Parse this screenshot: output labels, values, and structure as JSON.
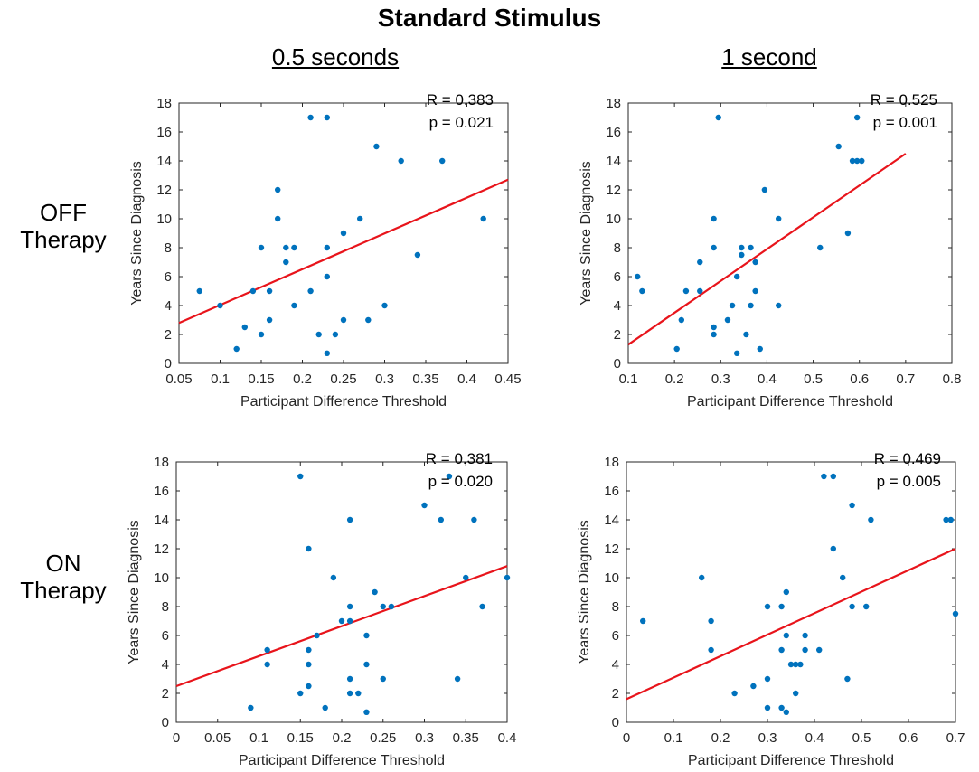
{
  "figure": {
    "title": "Standard Stimulus",
    "columns": [
      "0.5 seconds",
      "1 second"
    ],
    "rows": [
      {
        "line1": "OFF",
        "line2": "Therapy"
      },
      {
        "line1": "ON",
        "line2": "Therapy"
      }
    ],
    "point_color": "#0072BD",
    "line_color": "#E8141B"
  },
  "chart_data": [
    {
      "type": "scatter",
      "panel": "OFF Therapy, 0.5 seconds",
      "xlabel": "Participant Difference Threshold",
      "ylabel": "Years Since Diagnosis",
      "xlim": [
        0.05,
        0.45
      ],
      "ylim": [
        0,
        18
      ],
      "xticks": [
        0.05,
        0.1,
        0.15,
        0.2,
        0.25,
        0.3,
        0.35,
        0.4,
        0.45
      ],
      "xtick_labels": [
        "0.05",
        "0.1",
        "0.15",
        "0.2",
        "0.25",
        "0.3",
        "0.35",
        "0.4",
        "0.45"
      ],
      "yticks": [
        0,
        2,
        4,
        6,
        8,
        10,
        12,
        14,
        16,
        18
      ],
      "annotation": {
        "r": "R = 0.383",
        "p": "p = 0.021"
      },
      "fit_line": {
        "x": [
          0.05,
          0.45
        ],
        "y": [
          2.8,
          12.7
        ]
      },
      "points": [
        [
          0.075,
          5
        ],
        [
          0.1,
          4
        ],
        [
          0.12,
          1
        ],
        [
          0.13,
          2.5
        ],
        [
          0.14,
          5
        ],
        [
          0.15,
          2
        ],
        [
          0.15,
          8
        ],
        [
          0.16,
          5
        ],
        [
          0.16,
          3
        ],
        [
          0.17,
          12
        ],
        [
          0.17,
          10
        ],
        [
          0.18,
          8
        ],
        [
          0.18,
          7
        ],
        [
          0.19,
          8
        ],
        [
          0.19,
          4
        ],
        [
          0.21,
          17
        ],
        [
          0.21,
          5
        ],
        [
          0.22,
          2
        ],
        [
          0.23,
          17
        ],
        [
          0.23,
          8
        ],
        [
          0.23,
          6
        ],
        [
          0.23,
          0.7
        ],
        [
          0.24,
          2
        ],
        [
          0.25,
          9
        ],
        [
          0.25,
          3
        ],
        [
          0.27,
          10
        ],
        [
          0.28,
          3
        ],
        [
          0.29,
          15
        ],
        [
          0.3,
          4
        ],
        [
          0.32,
          14
        ],
        [
          0.34,
          7.5
        ],
        [
          0.37,
          14
        ],
        [
          0.42,
          10
        ]
      ]
    },
    {
      "type": "scatter",
      "panel": "OFF Therapy, 1 second",
      "xlabel": "Participant Difference Threshold",
      "ylabel": "Years Since Diagnosis",
      "xlim": [
        0.1,
        0.8
      ],
      "ylim": [
        0,
        18
      ],
      "xticks": [
        0.1,
        0.2,
        0.3,
        0.4,
        0.5,
        0.6,
        0.7,
        0.8
      ],
      "xtick_labels": [
        "0.1",
        "0.2",
        "0.3",
        "0.4",
        "0.5",
        "0.6",
        "0.7",
        "0.8"
      ],
      "yticks": [
        0,
        2,
        4,
        6,
        8,
        10,
        12,
        14,
        16,
        18
      ],
      "annotation": {
        "r": "R = 0.525",
        "p": "p = 0.001"
      },
      "fit_line": {
        "x": [
          0.1,
          0.7
        ],
        "y": [
          1.3,
          14.5
        ]
      },
      "points": [
        [
          0.12,
          6
        ],
        [
          0.13,
          5
        ],
        [
          0.205,
          1
        ],
        [
          0.215,
          3
        ],
        [
          0.225,
          5
        ],
        [
          0.255,
          7
        ],
        [
          0.255,
          5
        ],
        [
          0.285,
          10
        ],
        [
          0.285,
          8
        ],
        [
          0.285,
          2.5
        ],
        [
          0.285,
          2
        ],
        [
          0.295,
          17
        ],
        [
          0.315,
          3
        ],
        [
          0.325,
          4
        ],
        [
          0.335,
          6
        ],
        [
          0.335,
          0.7
        ],
        [
          0.345,
          8
        ],
        [
          0.345,
          7.5
        ],
        [
          0.355,
          2
        ],
        [
          0.365,
          8
        ],
        [
          0.365,
          4
        ],
        [
          0.375,
          7
        ],
        [
          0.375,
          5
        ],
        [
          0.385,
          1
        ],
        [
          0.395,
          12
        ],
        [
          0.425,
          10
        ],
        [
          0.425,
          4
        ],
        [
          0.515,
          8
        ],
        [
          0.555,
          15
        ],
        [
          0.575,
          9
        ],
        [
          0.585,
          14
        ],
        [
          0.595,
          17
        ],
        [
          0.595,
          14
        ],
        [
          0.605,
          14
        ]
      ]
    },
    {
      "type": "scatter",
      "panel": "ON Therapy, 0.5 seconds",
      "xlabel": "Participant Difference Threshold",
      "ylabel": "Years Since Diagnosis",
      "xlim": [
        0,
        0.4
      ],
      "ylim": [
        0,
        18
      ],
      "xticks": [
        0,
        0.05,
        0.1,
        0.15,
        0.2,
        0.25,
        0.3,
        0.35,
        0.4
      ],
      "xtick_labels": [
        "0",
        "0.05",
        "0.1",
        "0.15",
        "0.2",
        "0.25",
        "0.3",
        "0.35",
        "0.4"
      ],
      "yticks": [
        0,
        2,
        4,
        6,
        8,
        10,
        12,
        14,
        16,
        18
      ],
      "annotation": {
        "r": "R = 0.381",
        "p": "p = 0.020"
      },
      "fit_line": {
        "x": [
          0,
          0.4
        ],
        "y": [
          2.5,
          10.8
        ]
      },
      "points": [
        [
          0.09,
          1
        ],
        [
          0.11,
          5
        ],
        [
          0.11,
          4
        ],
        [
          0.15,
          17
        ],
        [
          0.15,
          2
        ],
        [
          0.16,
          12
        ],
        [
          0.16,
          5
        ],
        [
          0.16,
          4
        ],
        [
          0.16,
          2.5
        ],
        [
          0.17,
          6
        ],
        [
          0.18,
          1
        ],
        [
          0.19,
          10
        ],
        [
          0.2,
          7
        ],
        [
          0.21,
          14
        ],
        [
          0.21,
          8
        ],
        [
          0.21,
          7
        ],
        [
          0.21,
          3
        ],
        [
          0.21,
          2
        ],
        [
          0.22,
          2
        ],
        [
          0.23,
          6
        ],
        [
          0.23,
          4
        ],
        [
          0.23,
          0.7
        ],
        [
          0.24,
          9
        ],
        [
          0.25,
          8
        ],
        [
          0.25,
          3
        ],
        [
          0.26,
          8
        ],
        [
          0.3,
          15
        ],
        [
          0.32,
          14
        ],
        [
          0.33,
          17
        ],
        [
          0.34,
          3
        ],
        [
          0.35,
          10
        ],
        [
          0.36,
          14
        ],
        [
          0.37,
          8
        ],
        [
          0.4,
          10
        ]
      ]
    },
    {
      "type": "scatter",
      "panel": "ON Therapy, 1 second",
      "xlabel": "Participant Difference Threshold",
      "ylabel": "Years Since Diagnosis",
      "xlim": [
        0,
        0.7
      ],
      "ylim": [
        0,
        18
      ],
      "xticks": [
        0,
        0.1,
        0.2,
        0.3,
        0.4,
        0.5,
        0.6,
        0.7
      ],
      "xtick_labels": [
        "0",
        "0.1",
        "0.2",
        "0.3",
        "0.4",
        "0.5",
        "0.6",
        "0.7"
      ],
      "yticks": [
        0,
        2,
        4,
        6,
        8,
        10,
        12,
        14,
        16,
        18
      ],
      "annotation": {
        "r": "R = 0.469",
        "p": "p = 0.005"
      },
      "fit_line": {
        "x": [
          0,
          0.7
        ],
        "y": [
          1.6,
          12
        ]
      },
      "points": [
        [
          0.035,
          7
        ],
        [
          0.16,
          10
        ],
        [
          0.18,
          7
        ],
        [
          0.18,
          5
        ],
        [
          0.23,
          2
        ],
        [
          0.27,
          2.5
        ],
        [
          0.3,
          8
        ],
        [
          0.3,
          3
        ],
        [
          0.3,
          1
        ],
        [
          0.33,
          8
        ],
        [
          0.33,
          5
        ],
        [
          0.33,
          1
        ],
        [
          0.34,
          9
        ],
        [
          0.34,
          6
        ],
        [
          0.34,
          0.7
        ],
        [
          0.35,
          4
        ],
        [
          0.36,
          4
        ],
        [
          0.36,
          2
        ],
        [
          0.37,
          4
        ],
        [
          0.38,
          6
        ],
        [
          0.38,
          5
        ],
        [
          0.41,
          5
        ],
        [
          0.42,
          17
        ],
        [
          0.44,
          17
        ],
        [
          0.44,
          12
        ],
        [
          0.46,
          10
        ],
        [
          0.47,
          3
        ],
        [
          0.48,
          15
        ],
        [
          0.48,
          8
        ],
        [
          0.51,
          8
        ],
        [
          0.52,
          14
        ],
        [
          0.68,
          14
        ],
        [
          0.69,
          14
        ],
        [
          0.7,
          7.5
        ]
      ]
    }
  ]
}
